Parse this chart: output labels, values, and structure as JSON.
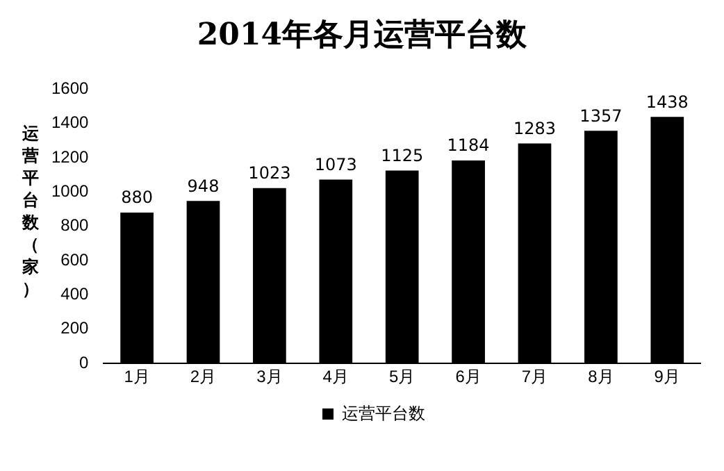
{
  "chart_data": {
    "type": "bar",
    "title": "2014年各月运营平台数",
    "ylabel": "运营平台数（家）",
    "categories": [
      "1月",
      "2月",
      "3月",
      "4月",
      "5月",
      "6月",
      "7月",
      "8月",
      "9月"
    ],
    "series": [
      {
        "name": "运营平台数",
        "color": "#000000",
        "values": [
          880,
          948,
          1023,
          1073,
          1125,
          1184,
          1283,
          1357,
          1438
        ]
      }
    ],
    "ylim": [
      0,
      1600
    ],
    "yticks": [
      0,
      200,
      400,
      600,
      800,
      1000,
      1200,
      1400,
      1600
    ],
    "grid": false,
    "legend": "bottom",
    "data_labels": true
  }
}
